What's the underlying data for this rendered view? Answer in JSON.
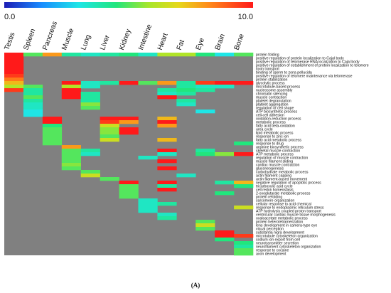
{
  "chart_data": {
    "type": "heatmap",
    "title": "",
    "caption": "(A)",
    "scale": {
      "min_label": "0.0",
      "max_label": "10.0",
      "min": 0,
      "max": 10
    },
    "background_color": "#808080",
    "columns": [
      "Testis",
      "Spleen",
      "Pancreas",
      "Muscle",
      "Lung",
      "Liver",
      "Kidney",
      "Intestine",
      "Heart",
      "Fat",
      "Eye",
      "Brain",
      "Bone"
    ],
    "rows": [
      "protein folding",
      "positive regulation of protein localization to Cajal body",
      "positive regulation of telomerase RNA localization to Cajal body",
      "positive regulation of establishment of protein localization to telomere",
      "toxin transport",
      "binding of sperm to zona pellucida",
      "positive regulation of telomere maintenance via telomerase",
      "protein stabilization",
      "glycolytic process",
      "microtubule-based process",
      "nucleosome assembly",
      "chromatin silencing",
      "muscle contraction",
      "platelet degranulation",
      "platelet aggregation",
      "regulation of cell shape",
      "ATP biosynthetic process",
      "cell-cell adhesion",
      "oxidation-reduction process",
      "metabolic process",
      "fatty acid beta-oxidation",
      "urea cycle",
      "lipid metabolic process",
      "response to zinc ion",
      "fatty acid metabolic process",
      "response to drug",
      "arginine biosynthetic process",
      "skeletal muscle contraction",
      "ATP metabolic process",
      "regulation of muscle contraction",
      "muscle filament sliding",
      "cardiac muscle contraction",
      "gluconeogenesis",
      "carbohydrate metabolic process",
      "actin filament capping",
      "actin filament-based movement",
      "negative regulation of apoptotic process",
      "tricarboxylic acid cycle",
      "cell redox homeostasis",
      "2-oxoglutarate metabolic process",
      "protein refolding",
      "sarcomere organization",
      "cellular response to acid chemical",
      "response to endoplasmic reticulum stress",
      "ATP hydrolysis coupled proton transport",
      "ventricular cardiac muscle tissue morphogenesis",
      "oxaloacetate metabolic process",
      "protein heterotetramerization",
      "lens development in camera-type eye",
      "visual perception",
      "substantia nigra development",
      "microtubule cytoskeleton organization",
      "sodium ion export from cell",
      "neurotransmitter secretion",
      "neurofilament cytoskeleton organization",
      "response to cocaine",
      "axon development"
    ],
    "cells": [
      [
        0,
        0,
        10
      ],
      [
        1,
        0,
        10
      ],
      [
        2,
        0,
        10
      ],
      [
        3,
        0,
        10
      ],
      [
        4,
        0,
        10
      ],
      [
        5,
        0,
        10
      ],
      [
        6,
        0,
        9.5
      ],
      [
        7,
        0,
        8.5
      ],
      [
        8,
        0,
        7.5
      ],
      [
        9,
        0,
        6
      ],
      [
        0,
        1,
        5
      ],
      [
        0,
        2,
        8
      ],
      [
        0,
        3,
        4
      ],
      [
        0,
        4,
        3.5
      ],
      [
        0,
        5,
        4
      ],
      [
        0,
        6,
        4.5
      ],
      [
        0,
        7,
        3.5
      ],
      [
        0,
        8,
        6
      ],
      [
        0,
        9,
        6
      ],
      [
        0,
        10,
        4.5
      ],
      [
        0,
        11,
        3
      ],
      [
        0,
        12,
        5
      ],
      [
        8,
        3,
        10
      ],
      [
        8,
        4,
        3.5
      ],
      [
        8,
        5,
        4
      ],
      [
        8,
        6,
        10
      ],
      [
        8,
        7,
        5
      ],
      [
        8,
        8,
        8
      ],
      [
        8,
        9,
        4
      ],
      [
        8,
        10,
        9.5
      ],
      [
        8,
        11,
        10
      ],
      [
        8,
        12,
        10
      ],
      [
        9,
        1,
        5
      ],
      [
        9,
        3,
        6
      ],
      [
        9,
        4,
        3.5
      ],
      [
        9,
        9,
        4
      ],
      [
        9,
        10,
        3.5
      ],
      [
        9,
        11,
        3.5
      ],
      [
        10,
        0,
        9.5
      ],
      [
        10,
        1,
        4
      ],
      [
        10,
        3,
        10
      ],
      [
        10,
        8,
        4
      ],
      [
        10,
        9,
        4.5
      ],
      [
        10,
        10,
        4
      ],
      [
        11,
        1,
        4
      ],
      [
        11,
        3,
        10
      ],
      [
        11,
        4,
        4
      ],
      [
        11,
        8,
        3.5
      ],
      [
        11,
        9,
        4
      ],
      [
        12,
        1,
        5
      ],
      [
        12,
        3,
        10
      ],
      [
        12,
        4,
        4
      ],
      [
        12,
        8,
        10
      ],
      [
        13,
        1,
        4
      ],
      [
        13,
        4,
        4
      ],
      [
        13,
        9,
        4
      ],
      [
        14,
        1,
        3.5
      ],
      [
        14,
        4,
        5.5
      ],
      [
        14,
        9,
        3.5
      ],
      [
        15,
        1,
        3.5
      ],
      [
        15,
        4,
        5
      ],
      [
        16,
        1,
        3
      ],
      [
        16,
        10,
        3
      ],
      [
        17,
        1,
        3
      ],
      [
        18,
        2,
        10
      ],
      [
        18,
        5,
        10
      ],
      [
        18,
        6,
        10
      ],
      [
        18,
        8,
        7.5
      ],
      [
        19,
        2,
        10
      ],
      [
        19,
        5,
        9.5
      ],
      [
        19,
        6,
        8
      ],
      [
        19,
        8,
        10
      ],
      [
        20,
        2,
        4.5
      ],
      [
        20,
        5,
        6.5
      ],
      [
        20,
        8,
        8
      ],
      [
        21,
        2,
        5
      ],
      [
        21,
        5,
        5.5
      ],
      [
        21,
        6,
        10
      ],
      [
        22,
        2,
        5
      ],
      [
        22,
        5,
        5.5
      ],
      [
        22,
        6,
        10
      ],
      [
        23,
        2,
        5
      ],
      [
        23,
        5,
        5
      ],
      [
        24,
        2,
        5
      ],
      [
        24,
        5,
        6.5
      ],
      [
        24,
        8,
        7.5
      ],
      [
        25,
        2,
        5
      ],
      [
        25,
        12,
        4.5
      ],
      [
        26,
        3,
        8
      ],
      [
        27,
        3,
        5
      ],
      [
        27,
        4,
        4
      ],
      [
        27,
        8,
        10
      ],
      [
        27,
        10,
        4
      ],
      [
        28,
        3,
        5
      ],
      [
        28,
        4,
        3.5
      ],
      [
        28,
        8,
        3.5
      ],
      [
        28,
        10,
        4.5
      ],
      [
        28,
        11,
        5.5
      ],
      [
        28,
        12,
        10
      ],
      [
        29,
        3,
        5
      ],
      [
        29,
        7,
        3.5
      ],
      [
        30,
        3,
        5
      ],
      [
        30,
        8,
        10
      ],
      [
        31,
        3,
        5.5
      ],
      [
        32,
        3,
        5
      ],
      [
        32,
        8,
        10
      ],
      [
        33,
        4,
        5
      ],
      [
        34,
        4,
        6.5
      ],
      [
        34,
        9,
        3.5
      ],
      [
        35,
        5,
        5
      ],
      [
        36,
        6,
        10
      ],
      [
        36,
        8,
        10
      ],
      [
        36,
        11,
        4
      ],
      [
        36,
        12,
        7.5
      ],
      [
        37,
        6,
        5
      ],
      [
        37,
        8,
        4
      ],
      [
        37,
        12,
        4.5
      ],
      [
        38,
        6,
        5
      ],
      [
        38,
        8,
        10
      ],
      [
        39,
        6,
        5
      ],
      [
        39,
        11,
        4.5
      ],
      [
        40,
        6,
        5
      ],
      [
        41,
        7,
        3.5
      ],
      [
        42,
        7,
        3.5
      ],
      [
        42,
        8,
        4
      ],
      [
        43,
        7,
        3.5
      ],
      [
        43,
        12,
        6.5
      ],
      [
        44,
        7,
        3.5
      ],
      [
        45,
        8,
        3.5
      ],
      [
        46,
        8,
        4
      ],
      [
        47,
        10,
        5
      ],
      [
        48,
        10,
        6.5
      ],
      [
        49,
        10,
        5
      ],
      [
        50,
        11,
        10
      ],
      [
        51,
        11,
        10
      ],
      [
        51,
        12,
        9.5
      ],
      [
        52,
        11,
        4.5
      ],
      [
        53,
        12,
        4.5
      ],
      [
        54,
        12,
        4
      ],
      [
        55,
        12,
        5
      ],
      [
        56,
        12,
        5
      ]
    ]
  }
}
